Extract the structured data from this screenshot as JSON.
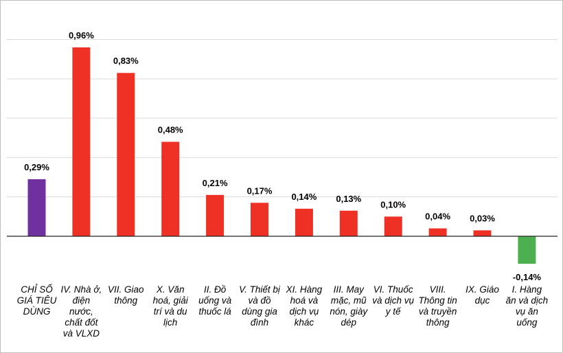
{
  "chart_data": {
    "type": "bar",
    "title": "",
    "xlabel": "",
    "ylabel": "",
    "ylim": [
      -0.2,
      1.0
    ],
    "grid": true,
    "unit": "%",
    "categories": [
      "CHỈ SỐ GIÁ TIÊU DÙNG",
      "IV. Nhà ở, điện nước, chất đốt và VLXD",
      "VII. Giao thông",
      "X. Văn hoá, giải trí và du lịch",
      "II. Đồ uống và thuốc lá",
      "V. Thiết bị và đồ dùng gia đình",
      "XI. Hàng hoá và dịch vụ khác",
      "III. May mặc, mũ nón, giày dép",
      "VI. Thuốc và dịch vụ y tế",
      "VIII. Thông tin và truyền thông",
      "IX. Giáo dục",
      "I. Hàng ăn và dịch vụ ăn uống"
    ],
    "values": [
      0.29,
      0.96,
      0.83,
      0.48,
      0.21,
      0.17,
      0.14,
      0.13,
      0.1,
      0.04,
      0.03,
      -0.14
    ],
    "data_labels": [
      "0,29%",
      "0,96%",
      "0,83%",
      "0,48%",
      "0,21%",
      "0,17%",
      "0,14%",
      "0,13%",
      "0,10%",
      "0,04%",
      "0,03%",
      "-0,14%"
    ],
    "colors": {
      "total": "#7030a0",
      "positive": "#ee3124",
      "negative": "#4cb050"
    }
  }
}
